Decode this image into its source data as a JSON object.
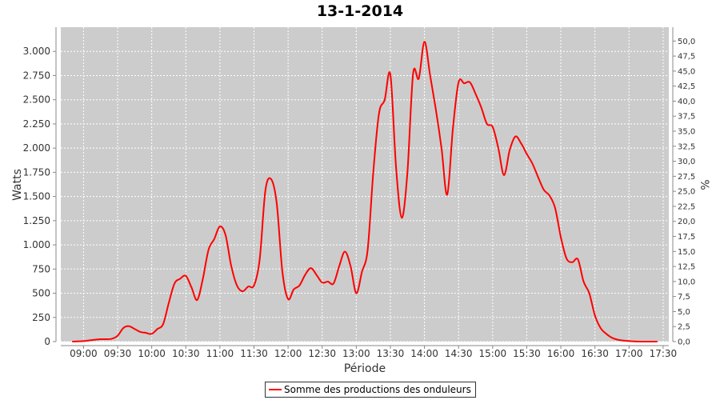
{
  "chart_data": {
    "type": "line",
    "title": "13-1-2014",
    "xlabel": "Période",
    "ylabel": "Watts",
    "y2label": "%",
    "x_tick_labels": [
      "09:00",
      "09:30",
      "10:00",
      "10:30",
      "11:00",
      "11:30",
      "12:00",
      "12:30",
      "13:00",
      "13:30",
      "14:00",
      "14:30",
      "15:00",
      "15:30",
      "16:00",
      "16:30",
      "17:00",
      "17:30"
    ],
    "xlim": [
      "08:40",
      "17:35"
    ],
    "ylim": [
      0,
      3250
    ],
    "y_ticks": [
      0,
      250,
      500,
      750,
      1000,
      1250,
      1500,
      1750,
      2000,
      2250,
      2500,
      2750,
      3000
    ],
    "y_tick_labels": [
      "0",
      "250",
      "500",
      "750",
      "1.000",
      "1.250",
      "1.500",
      "1.750",
      "2.000",
      "2.250",
      "2.500",
      "2.750",
      "3.000"
    ],
    "y2lim": [
      0,
      52.3
    ],
    "y2_tick_labels": [
      "0,0",
      "2,5",
      "5,0",
      "7,5",
      "10,0",
      "12,5",
      "15,0",
      "17,5",
      "20,0",
      "22,5",
      "25,0",
      "27,5",
      "30,0",
      "32,5",
      "35,0",
      "37,5",
      "40,0",
      "42,5",
      "45,0",
      "47,5",
      "50,0"
    ],
    "grid": true,
    "legend_position": "bottom-center",
    "series": [
      {
        "name": "Somme des productions des onduleurs",
        "color": "#ff0000",
        "x": [
          "08:50",
          "09:00",
          "09:10",
          "09:15",
          "09:20",
          "09:25",
          "09:30",
          "09:35",
          "09:40",
          "09:45",
          "09:50",
          "09:55",
          "10:00",
          "10:05",
          "10:10",
          "10:15",
          "10:20",
          "10:25",
          "10:30",
          "10:35",
          "10:40",
          "10:45",
          "10:50",
          "10:55",
          "11:00",
          "11:05",
          "11:10",
          "11:15",
          "11:20",
          "11:25",
          "11:30",
          "11:35",
          "11:40",
          "11:45",
          "11:50",
          "11:55",
          "12:00",
          "12:05",
          "12:10",
          "12:15",
          "12:20",
          "12:25",
          "12:30",
          "12:35",
          "12:40",
          "12:45",
          "12:50",
          "12:55",
          "13:00",
          "13:05",
          "13:10",
          "13:15",
          "13:20",
          "13:25",
          "13:30",
          "13:35",
          "13:40",
          "13:45",
          "13:50",
          "13:55",
          "14:00",
          "14:05",
          "14:10",
          "14:15",
          "14:20",
          "14:25",
          "14:30",
          "14:35",
          "14:40",
          "14:45",
          "14:50",
          "14:55",
          "15:00",
          "15:05",
          "15:10",
          "15:15",
          "15:20",
          "15:25",
          "15:30",
          "15:35",
          "15:40",
          "15:45",
          "15:50",
          "15:55",
          "16:00",
          "16:05",
          "16:10",
          "16:15",
          "16:20",
          "16:25",
          "16:30",
          "16:35",
          "16:40",
          "16:45",
          "16:50",
          "17:00",
          "17:10",
          "17:20",
          "17:25"
        ],
        "values": [
          0,
          5,
          20,
          25,
          25,
          30,
          60,
          140,
          160,
          130,
          100,
          90,
          80,
          130,
          180,
          400,
          600,
          650,
          680,
          560,
          430,
          650,
          950,
          1060,
          1190,
          1100,
          780,
          580,
          520,
          570,
          580,
          850,
          1560,
          1680,
          1430,
          720,
          440,
          540,
          580,
          690,
          760,
          690,
          610,
          620,
          600,
          780,
          930,
          780,
          500,
          720,
          950,
          1760,
          2360,
          2500,
          2760,
          1800,
          1280,
          1750,
          2770,
          2720,
          3100,
          2750,
          2400,
          2000,
          1520,
          2200,
          2680,
          2670,
          2680,
          2560,
          2420,
          2250,
          2220,
          2000,
          1720,
          1980,
          2120,
          2050,
          1940,
          1840,
          1700,
          1570,
          1510,
          1380,
          1080,
          860,
          820,
          850,
          620,
          500,
          270,
          140,
          80,
          40,
          20,
          5,
          0,
          0,
          0
        ]
      }
    ]
  }
}
